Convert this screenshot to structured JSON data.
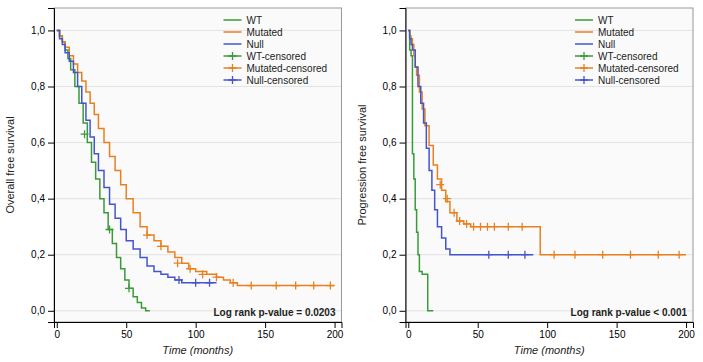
{
  "chart_data": [
    {
      "type": "step",
      "ylabel": "Overall free survival",
      "xlabel": "Time (months)",
      "annotation": "Log rank p-value = 0.0203",
      "xlim": [
        -2,
        205
      ],
      "ylim": [
        -0.04,
        1.08
      ],
      "xticks": [
        0,
        50,
        100,
        150,
        200
      ],
      "yticks": [
        {
          "value": 0.0,
          "label": "0,0"
        },
        {
          "value": 0.2,
          "label": "0,2"
        },
        {
          "value": 0.4,
          "label": "0,4"
        },
        {
          "value": 0.6,
          "label": "0,6"
        },
        {
          "value": 0.8,
          "label": "0,8"
        },
        {
          "value": 1.0,
          "label": "1,0"
        }
      ],
      "grid": true,
      "legend": "upper right",
      "series": [
        {
          "name": "WT",
          "type": "step",
          "color": "#3a9a3a",
          "x": [
            0,
            2,
            4,
            6,
            8,
            10,
            13,
            16,
            19,
            22,
            25,
            28,
            31,
            34,
            37,
            40,
            43,
            46,
            49,
            52,
            55,
            58,
            61,
            64,
            67
          ],
          "values": [
            1.0,
            0.98,
            0.96,
            0.93,
            0.9,
            0.86,
            0.8,
            0.74,
            0.67,
            0.6,
            0.53,
            0.47,
            0.4,
            0.35,
            0.29,
            0.24,
            0.19,
            0.15,
            0.11,
            0.08,
            0.05,
            0.03,
            0.01,
            0.0,
            0.0
          ]
        },
        {
          "name": "Mutated",
          "type": "step",
          "color": "#e88020",
          "x": [
            0,
            2,
            4,
            6,
            9,
            12,
            15,
            18,
            21,
            24,
            27,
            30,
            34,
            38,
            42,
            46,
            50,
            55,
            60,
            65,
            70,
            75,
            80,
            85,
            90,
            95,
            100,
            108,
            115,
            120,
            125,
            130,
            140,
            150,
            160,
            175,
            190,
            200
          ],
          "values": [
            1.0,
            0.98,
            0.96,
            0.94,
            0.91,
            0.88,
            0.85,
            0.82,
            0.78,
            0.74,
            0.7,
            0.65,
            0.6,
            0.55,
            0.5,
            0.45,
            0.4,
            0.35,
            0.3,
            0.27,
            0.25,
            0.23,
            0.21,
            0.19,
            0.17,
            0.15,
            0.14,
            0.13,
            0.12,
            0.11,
            0.1,
            0.09,
            0.09,
            0.09,
            0.09,
            0.09,
            0.09,
            0.09
          ]
        },
        {
          "name": "Null",
          "type": "step",
          "color": "#4455cc",
          "x": [
            0,
            2,
            4,
            6,
            9,
            12,
            15,
            18,
            21,
            24,
            27,
            30,
            34,
            38,
            42,
            46,
            50,
            55,
            60,
            65,
            70,
            75,
            80,
            85,
            90,
            95,
            100,
            105,
            110,
            115
          ],
          "values": [
            1.0,
            0.97,
            0.95,
            0.92,
            0.89,
            0.85,
            0.8,
            0.74,
            0.68,
            0.62,
            0.56,
            0.5,
            0.44,
            0.38,
            0.33,
            0.29,
            0.25,
            0.22,
            0.19,
            0.16,
            0.14,
            0.13,
            0.12,
            0.11,
            0.1,
            0.1,
            0.1,
            0.1,
            0.1,
            0.1
          ]
        },
        {
          "name": "WT-censored",
          "type": "scatter",
          "marker": "+",
          "color": "#3a9a3a",
          "x": [
            20,
            38,
            52
          ],
          "values": [
            0.63,
            0.29,
            0.08
          ]
        },
        {
          "name": "Mutated-censored",
          "type": "scatter",
          "marker": "+",
          "color": "#e88020",
          "x": [
            65,
            75,
            87,
            96,
            105,
            115,
            127,
            140,
            158,
            172,
            185,
            197
          ],
          "values": [
            0.27,
            0.23,
            0.17,
            0.15,
            0.13,
            0.12,
            0.1,
            0.09,
            0.09,
            0.09,
            0.09,
            0.09
          ]
        },
        {
          "name": "Null-censored",
          "type": "scatter",
          "marker": "+",
          "color": "#4455cc",
          "x": [
            88,
            100,
            110
          ],
          "values": [
            0.11,
            0.1,
            0.1
          ]
        }
      ]
    },
    {
      "type": "step",
      "ylabel": "Progression free survival",
      "xlabel": "Time (months)",
      "annotation": "Log rank p-value < 0.001",
      "xlim": [
        -2,
        205
      ],
      "ylim": [
        -0.04,
        1.08
      ],
      "xticks": [
        0,
        50,
        100,
        150,
        200
      ],
      "yticks": [
        {
          "value": 0.0,
          "label": "0,0"
        },
        {
          "value": 0.2,
          "label": "0,2"
        },
        {
          "value": 0.4,
          "label": "0,4"
        },
        {
          "value": 0.6,
          "label": "0,6"
        },
        {
          "value": 0.8,
          "label": "0,8"
        },
        {
          "value": 1.0,
          "label": "1,0"
        }
      ],
      "grid": true,
      "legend": "upper right",
      "series": [
        {
          "name": "WT",
          "type": "step",
          "color": "#3a9a3a",
          "x": [
            0,
            1,
            2,
            3,
            4,
            5,
            6,
            7,
            8,
            10,
            12,
            14,
            16,
            18
          ],
          "values": [
            1.0,
            0.93,
            0.91,
            0.56,
            0.47,
            0.36,
            0.28,
            0.2,
            0.14,
            0.13,
            0.13,
            0.0,
            0.0,
            0.0
          ]
        },
        {
          "name": "Mutated",
          "type": "step",
          "color": "#e88020",
          "x": [
            0,
            1,
            2,
            3,
            4,
            5,
            6,
            8,
            10,
            12,
            15,
            18,
            21,
            24,
            27,
            30,
            35,
            40,
            45,
            50,
            55,
            60,
            70,
            80,
            90,
            95,
            100,
            110,
            120,
            130,
            140,
            150,
            160,
            170,
            180,
            190,
            200
          ],
          "values": [
            1.0,
            0.98,
            0.97,
            0.95,
            0.91,
            0.87,
            0.84,
            0.78,
            0.72,
            0.66,
            0.59,
            0.52,
            0.47,
            0.43,
            0.39,
            0.35,
            0.32,
            0.31,
            0.3,
            0.3,
            0.3,
            0.3,
            0.3,
            0.3,
            0.3,
            0.2,
            0.2,
            0.2,
            0.2,
            0.2,
            0.2,
            0.2,
            0.2,
            0.2,
            0.2,
            0.2,
            0.2
          ]
        },
        {
          "name": "Null",
          "type": "step",
          "color": "#4455cc",
          "x": [
            0,
            1,
            2,
            3,
            5,
            7,
            9,
            11,
            13,
            15,
            17,
            19,
            21,
            24,
            27,
            30,
            35,
            40,
            50,
            60,
            70,
            80,
            85,
            90
          ],
          "values": [
            1.0,
            0.97,
            0.95,
            0.93,
            0.87,
            0.8,
            0.74,
            0.67,
            0.58,
            0.5,
            0.43,
            0.36,
            0.3,
            0.26,
            0.22,
            0.2,
            0.2,
            0.2,
            0.2,
            0.2,
            0.2,
            0.2,
            0.2,
            0.2
          ]
        },
        {
          "name": "WT-censored",
          "type": "scatter",
          "marker": "+",
          "color": "#3a9a3a",
          "x": [],
          "values": []
        },
        {
          "name": "Mutated-censored",
          "type": "scatter",
          "marker": "+",
          "color": "#e88020",
          "x": [
            23,
            28,
            33,
            37,
            42,
            47,
            52,
            57,
            62,
            72,
            82,
            105,
            120,
            140,
            160,
            180,
            195
          ],
          "values": [
            0.45,
            0.4,
            0.35,
            0.32,
            0.31,
            0.3,
            0.3,
            0.3,
            0.3,
            0.3,
            0.3,
            0.2,
            0.2,
            0.2,
            0.2,
            0.2,
            0.2
          ]
        },
        {
          "name": "Null-censored",
          "type": "scatter",
          "marker": "+",
          "color": "#4455cc",
          "x": [
            58,
            72,
            84
          ],
          "values": [
            0.2,
            0.2,
            0.2
          ]
        }
      ]
    }
  ]
}
